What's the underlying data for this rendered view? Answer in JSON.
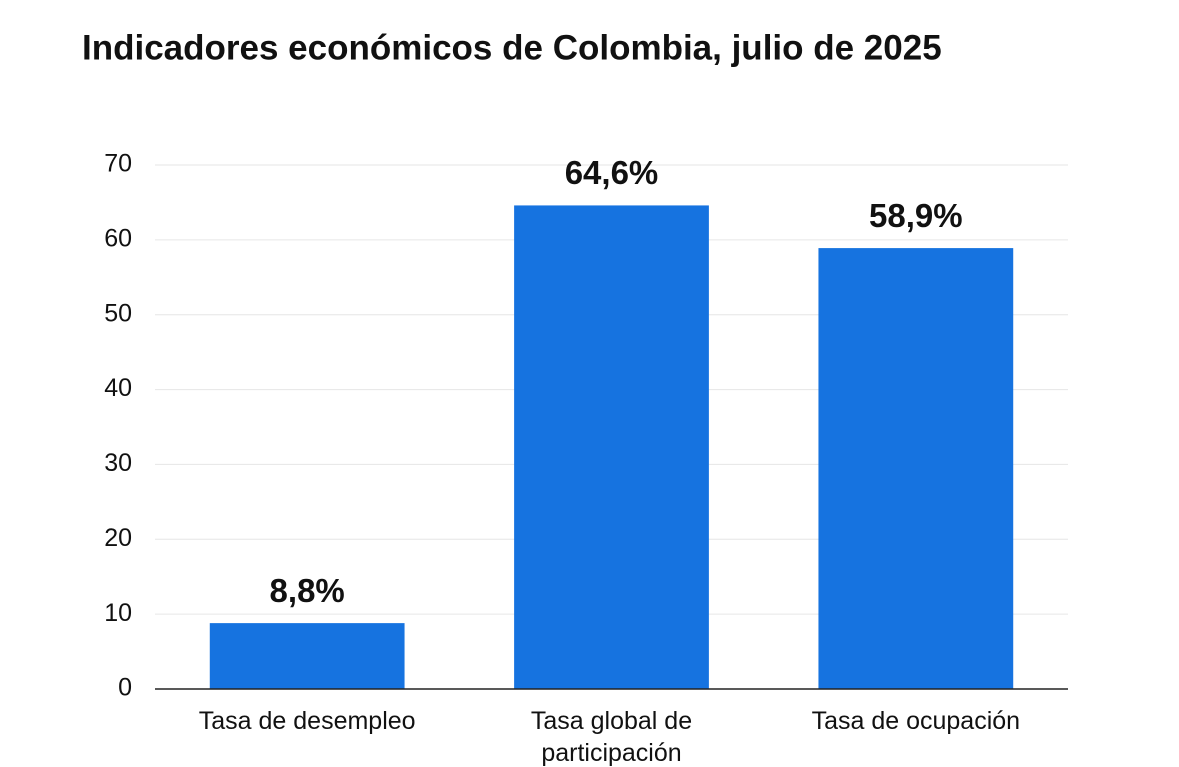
{
  "chart_data": {
    "type": "bar",
    "title": "Indicadores económicos de Colombia, julio de 2025",
    "categories": [
      "Tasa de desempleo",
      "Tasa global de participación",
      "Tasa de ocupación"
    ],
    "values": [
      8.8,
      64.6,
      58.9
    ],
    "value_labels": [
      "8,8%",
      "64,6%",
      "58,9%"
    ],
    "color": "#1673e0",
    "ylim": [
      0,
      70
    ],
    "yticks": [
      0,
      10,
      20,
      30,
      40,
      50,
      60,
      70
    ],
    "grid": true
  }
}
